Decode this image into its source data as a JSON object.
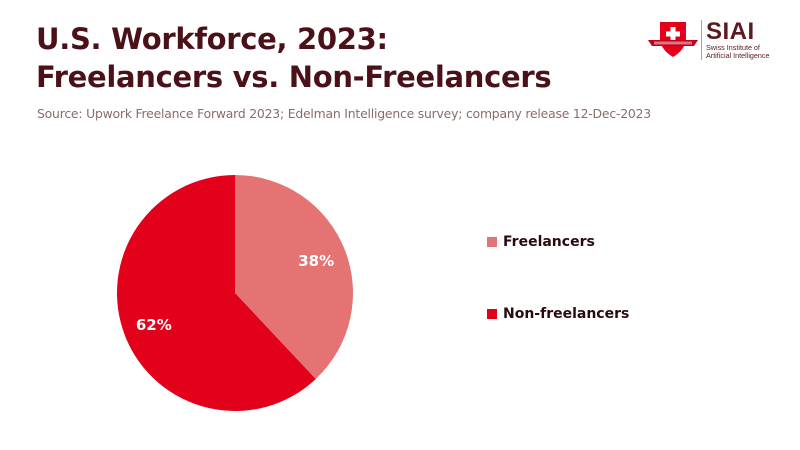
{
  "header": {
    "title_line1": "U.S. Workforce, 2023:",
    "title_line2": "Freelancers vs. Non-Freelancers",
    "source": "Source: Upwork Freelance Forward 2023; Edelman Intelligence survey; company release 12-Dec-2023"
  },
  "logo": {
    "name": "SIAI",
    "subtitle_line1": "Swiss Institute of",
    "subtitle_line2": "Artificial Intelligence",
    "icon": "swiss-cross-shield-icon"
  },
  "colors": {
    "title": "#4a1118",
    "freelancers": "#e57373",
    "non_freelancers": "#e3001b"
  },
  "chart_data": {
    "type": "pie",
    "title": "U.S. Workforce, 2023: Freelancers vs. Non-Freelancers",
    "slices": [
      {
        "label": "Freelancers",
        "value": 38,
        "display": "38%",
        "color": "#e57373"
      },
      {
        "label": "Non-freelancers",
        "value": 62,
        "display": "62%",
        "color": "#e3001b"
      }
    ],
    "start_angle": "12 o'clock",
    "direction": "clockwise",
    "legend_position": "right"
  }
}
